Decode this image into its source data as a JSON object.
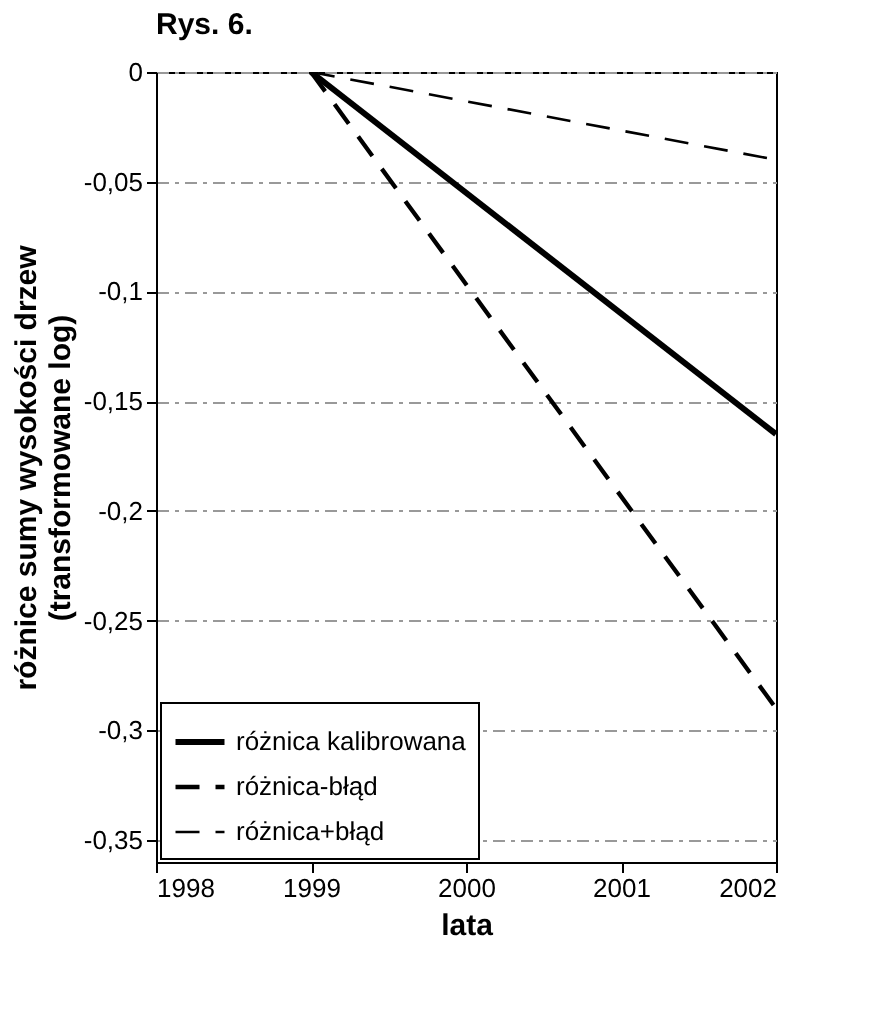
{
  "chart_data": {
    "type": "line",
    "title": "Rys. 6.",
    "xlabel": "lata",
    "ylabel": "różnice sumy wysokości drzew (transformowane log)",
    "x": [
      1999,
      2002
    ],
    "series": [
      {
        "name": "różnica kalibrowana",
        "color": "#000000",
        "values": [
          0,
          -0.165
        ],
        "line_style": "solid"
      },
      {
        "name": "różnica-błąd",
        "color": "#000000",
        "values": [
          0,
          -0.29
        ],
        "line_style": "dashed"
      },
      {
        "name": "różnica+błąd",
        "color": "#000000",
        "values": [
          0,
          -0.04
        ],
        "line_style": "dashed"
      }
    ],
    "xlim": [
      1998,
      2002
    ],
    "xticks": [
      1998,
      1999,
      2000,
      2001,
      2002
    ],
    "ylim": [
      -0.36,
      0
    ],
    "yticks": [
      {
        "value": 0,
        "label": "0"
      },
      {
        "value": -0.05,
        "label": "-0,05"
      },
      {
        "value": -0.1,
        "label": "-0,1"
      },
      {
        "value": -0.15,
        "label": "-0,15"
      },
      {
        "value": -0.2,
        "label": "-0,2"
      },
      {
        "value": -0.25,
        "label": "-0,25"
      },
      {
        "value": -0.3,
        "label": "-0,3"
      },
      {
        "value": -0.35,
        "label": "-0,35"
      }
    ],
    "grid": "y",
    "legend": "bottom left"
  }
}
